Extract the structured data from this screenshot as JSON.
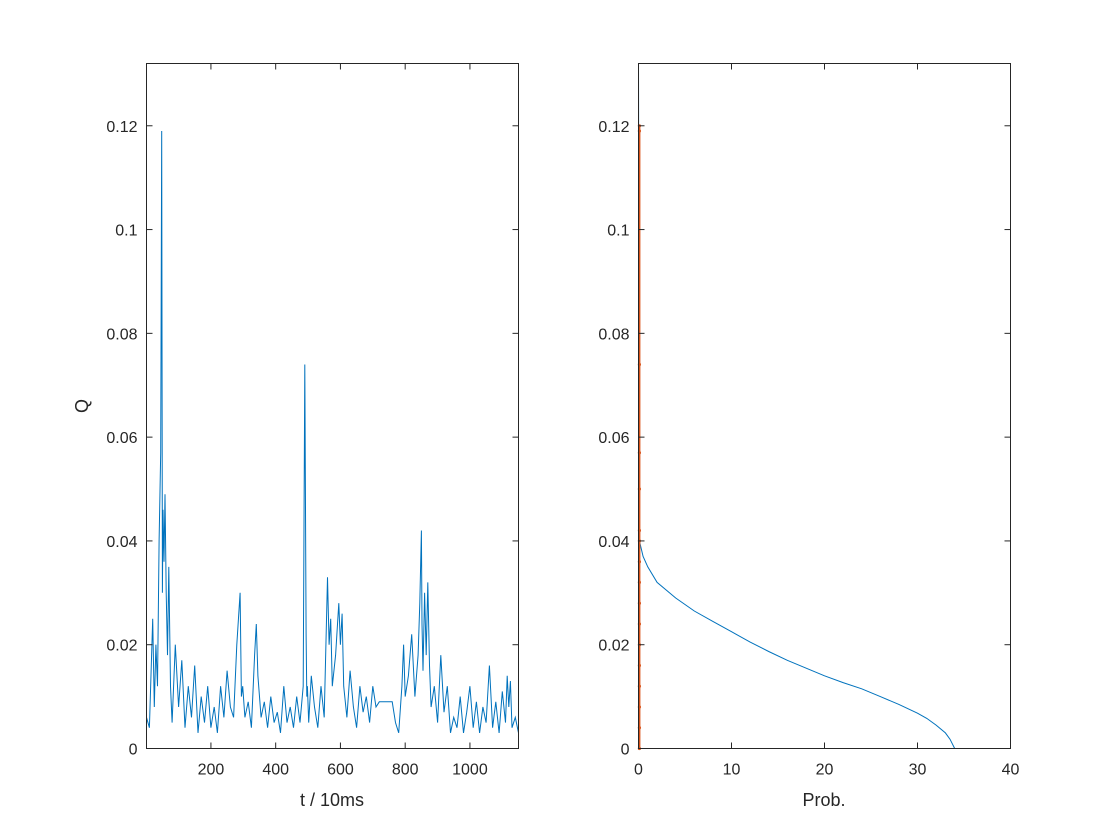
{
  "chart_data": [
    {
      "type": "line",
      "xlabel": "t / 10ms",
      "ylabel": "Q",
      "xlim": [
        1,
        1150
      ],
      "ylim": [
        0,
        0.132
      ],
      "xticks": [
        200,
        400,
        600,
        800,
        1000
      ],
      "yticks": [
        0,
        0.02,
        0.04,
        0.06,
        0.08,
        0.1,
        0.12
      ],
      "xtick_labels": [
        "200",
        "400",
        "600",
        "800",
        "1000"
      ],
      "ytick_labels": [
        "0",
        "0.02",
        "0.04",
        "0.06",
        "0.08",
        "0.1",
        "0.12"
      ],
      "grid": false,
      "color": "#0072BD",
      "series": [
        {
          "x": [
            1,
            10,
            20,
            25,
            30,
            35,
            40,
            45,
            48,
            50,
            52,
            55,
            58,
            62,
            66,
            70,
            75,
            80,
            90,
            100,
            110,
            120,
            130,
            140,
            150,
            160,
            170,
            180,
            190,
            200,
            210,
            220,
            230,
            240,
            250,
            260,
            270,
            280,
            290,
            294,
            298,
            305,
            315,
            325,
            335,
            340,
            345,
            355,
            365,
            375,
            385,
            395,
            405,
            415,
            425,
            435,
            445,
            455,
            465,
            475,
            485,
            490,
            494,
            496,
            498,
            502,
            510,
            520,
            530,
            540,
            550,
            560,
            565,
            570,
            575,
            585,
            595,
            600,
            605,
            610,
            620,
            630,
            640,
            650,
            660,
            670,
            680,
            690,
            700,
            710,
            720,
            740,
            760,
            770,
            780,
            790,
            795,
            800,
            810,
            820,
            830,
            840,
            845,
            850,
            852,
            855,
            860,
            865,
            870,
            875,
            880,
            890,
            900,
            910,
            920,
            930,
            940,
            950,
            960,
            970,
            980,
            990,
            1000,
            1010,
            1020,
            1030,
            1040,
            1050,
            1060,
            1070,
            1080,
            1090,
            1100,
            1110,
            1115,
            1120,
            1125,
            1130,
            1140,
            1150
          ],
          "values": [
            0.006,
            0.004,
            0.025,
            0.008,
            0.02,
            0.012,
            0.04,
            0.057,
            0.119,
            0.03,
            0.046,
            0.036,
            0.049,
            0.03,
            0.018,
            0.035,
            0.012,
            0.005,
            0.02,
            0.008,
            0.017,
            0.004,
            0.012,
            0.006,
            0.016,
            0.003,
            0.01,
            0.005,
            0.012,
            0.004,
            0.008,
            0.003,
            0.012,
            0.006,
            0.015,
            0.008,
            0.006,
            0.02,
            0.03,
            0.01,
            0.012,
            0.006,
            0.009,
            0.004,
            0.018,
            0.024,
            0.014,
            0.006,
            0.009,
            0.004,
            0.01,
            0.005,
            0.007,
            0.003,
            0.012,
            0.005,
            0.008,
            0.004,
            0.01,
            0.005,
            0.012,
            0.074,
            0.022,
            0.01,
            0.012,
            0.005,
            0.014,
            0.008,
            0.004,
            0.012,
            0.006,
            0.033,
            0.02,
            0.025,
            0.012,
            0.018,
            0.028,
            0.02,
            0.026,
            0.012,
            0.006,
            0.015,
            0.008,
            0.004,
            0.012,
            0.007,
            0.01,
            0.005,
            0.012,
            0.008,
            0.009,
            0.009,
            0.009,
            0.005,
            0.003,
            0.012,
            0.02,
            0.01,
            0.014,
            0.022,
            0.01,
            0.018,
            0.028,
            0.042,
            0.024,
            0.015,
            0.03,
            0.018,
            0.032,
            0.016,
            0.008,
            0.012,
            0.005,
            0.018,
            0.007,
            0.012,
            0.003,
            0.006,
            0.004,
            0.01,
            0.003,
            0.007,
            0.012,
            0.004,
            0.009,
            0.003,
            0.008,
            0.005,
            0.016,
            0.004,
            0.009,
            0.003,
            0.011,
            0.005,
            0.014,
            0.008,
            0.013,
            0.004,
            0.006,
            0.003
          ]
        }
      ]
    },
    {
      "type": "line",
      "xlabel": "Prob.",
      "ylabel": "",
      "xlim": [
        0,
        40
      ],
      "ylim": [
        0,
        0.132
      ],
      "xticks": [
        0,
        10,
        20,
        30,
        40
      ],
      "yticks": [
        0,
        0.02,
        0.04,
        0.06,
        0.08,
        0.1,
        0.12
      ],
      "xtick_labels": [
        "0",
        "10",
        "20",
        "30",
        "40"
      ],
      "ytick_labels": [
        "0",
        "0.02",
        "0.04",
        "0.06",
        "0.08",
        "0.1",
        "0.12"
      ],
      "grid": false,
      "series": [
        {
          "color": "#0072BD",
          "x": [
            0,
            0.1,
            0.5,
            1,
            2,
            4,
            6,
            8,
            10,
            12,
            14,
            16,
            18,
            20,
            22,
            24,
            26,
            28,
            30,
            31,
            32,
            33,
            33.5,
            34
          ],
          "values": [
            0.132,
            0.04,
            0.037,
            0.035,
            0.032,
            0.029,
            0.0265,
            0.0245,
            0.0225,
            0.0205,
            0.0187,
            0.017,
            0.0155,
            0.014,
            0.0127,
            0.0115,
            0.01,
            0.0085,
            0.0068,
            0.0058,
            0.0045,
            0.003,
            0.0018,
            0
          ]
        },
        {
          "color": "#D95319",
          "x": [
            0.1,
            0.1,
            0.1,
            0.1,
            0.1,
            0.1,
            0.1,
            0.1,
            0.1,
            0.1,
            0.1,
            0.1,
            0.1,
            0.1,
            0.1,
            0.1,
            0.1
          ],
          "values": [
            0,
            0.004,
            0.008,
            0.012,
            0.016,
            0.02,
            0.024,
            0.028,
            0.032,
            0.036,
            0.04,
            0.042,
            0.05,
            0.057,
            0.074,
            0.119,
            0.12
          ]
        }
      ]
    }
  ]
}
